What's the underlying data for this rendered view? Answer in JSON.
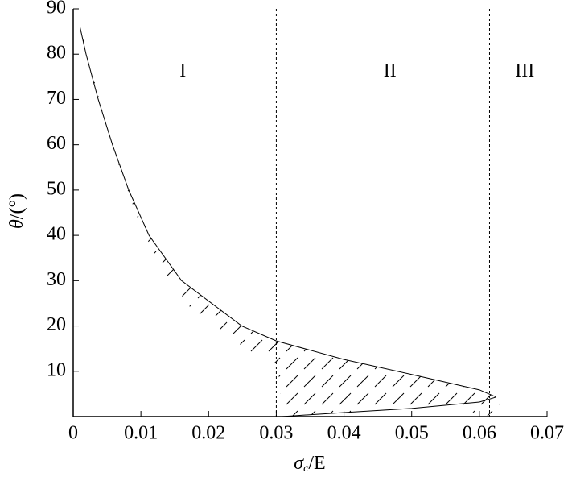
{
  "chart_data": {
    "type": "line",
    "xlabel": [
      "σ",
      "c",
      "/E"
    ],
    "ylabel": [
      "θ",
      "/(°)"
    ],
    "xlim": [
      0,
      0.07
    ],
    "xticks": [
      0,
      0.01,
      0.02,
      0.03,
      0.04,
      0.05,
      0.06,
      0.07
    ],
    "ylim": [
      0,
      90
    ],
    "yticks": [
      10,
      20,
      30,
      40,
      50,
      60,
      70,
      80,
      90
    ],
    "color": "#000000",
    "series": [
      {
        "x": [
          0.001,
          0.0019,
          0.0037,
          0.0058,
          0.0082,
          0.0112,
          0.016,
          0.0249,
          0.03,
          0.04,
          0.05,
          0.06,
          0.0625
        ],
        "values": [
          86,
          80,
          70,
          60,
          50,
          40,
          30,
          20,
          16.7,
          12.6,
          9.3,
          5.9,
          4.3
        ]
      },
      {
        "x": [
          0.0625,
          0.06,
          0.05,
          0.04,
          0.0308
        ],
        "values": [
          4.3,
          3.2,
          1.8,
          0.9,
          0
        ]
      }
    ],
    "vlines": [
      0.03,
      0.0615
    ],
    "annotations": [
      {
        "text": "I",
        "x": 0.0162,
        "y": 76
      },
      {
        "text": "II",
        "x": 0.0468,
        "y": 76
      },
      {
        "text": "III",
        "x": 0.0667,
        "y": 76
      }
    ]
  }
}
